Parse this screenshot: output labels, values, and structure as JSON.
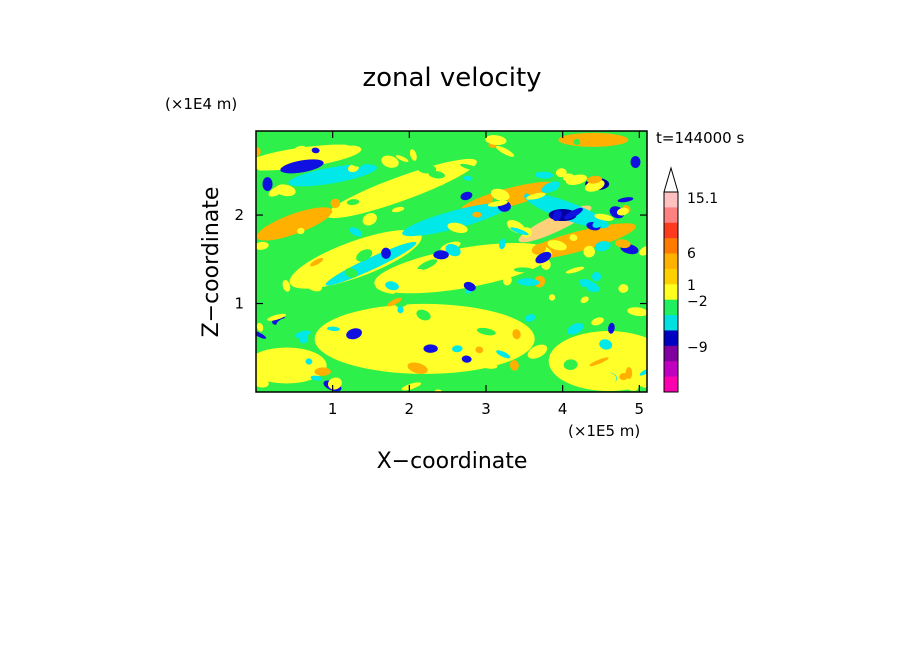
{
  "chart_data": {
    "type": "heatmap",
    "title": "zonal velocity",
    "xlabel": "X−coordinate",
    "ylabel": "Z−coordinate",
    "x_scale_label": "(×1E5 m)",
    "y_scale_label": "(×1E4 m)",
    "time_label": "t=144000 s",
    "xlim": [
      0,
      5.1
    ],
    "ylim": [
      0,
      2.95
    ],
    "x_ticks": [
      1,
      2,
      3,
      4,
      5
    ],
    "x_tick_labels": [
      "1",
      "2",
      "3",
      "4",
      "5"
    ],
    "y_ticks": [
      1,
      2
    ],
    "y_tick_labels": [
      "1",
      "2"
    ],
    "colorbar": {
      "labels": [
        "15.1",
        "6",
        "1",
        "−2",
        "−9"
      ],
      "levels_top_to_bottom": [
        15.1,
        12,
        9,
        6,
        4,
        3,
        2,
        1,
        0,
        -1,
        -2,
        -3,
        -6,
        -9,
        -12
      ],
      "colors_top_to_bottom": [
        "#ffc0c0",
        "#ff8080",
        "#ff3b1f",
        "#ff7a00",
        "#ffb100",
        "#ffd000",
        "#f5e400",
        "#ffff20",
        "#ccf040",
        "#20f060",
        "#00e0e0",
        "#1060ff",
        "#0000c0",
        "#8000a0",
        "#c000c0",
        "#ff00b0"
      ],
      "colors_legend": [
        "#ffc0c0",
        "#ff8080",
        "#ff3b1f",
        "#ff7a00",
        "#ffb100",
        "#ffd000",
        "#ffff20",
        "#20f060",
        "#00e0e0",
        "#0000c0",
        "#8000a0",
        "#c000c0",
        "#ff00b0"
      ]
    },
    "palette": {
      "green": "#2ef04a",
      "yellow": "#ffff2a",
      "orange": "#ffb000",
      "peach": "#ffd07a",
      "cyan": "#00e8e8",
      "blue": "#1010e0",
      "navy": "#0000a0"
    }
  }
}
